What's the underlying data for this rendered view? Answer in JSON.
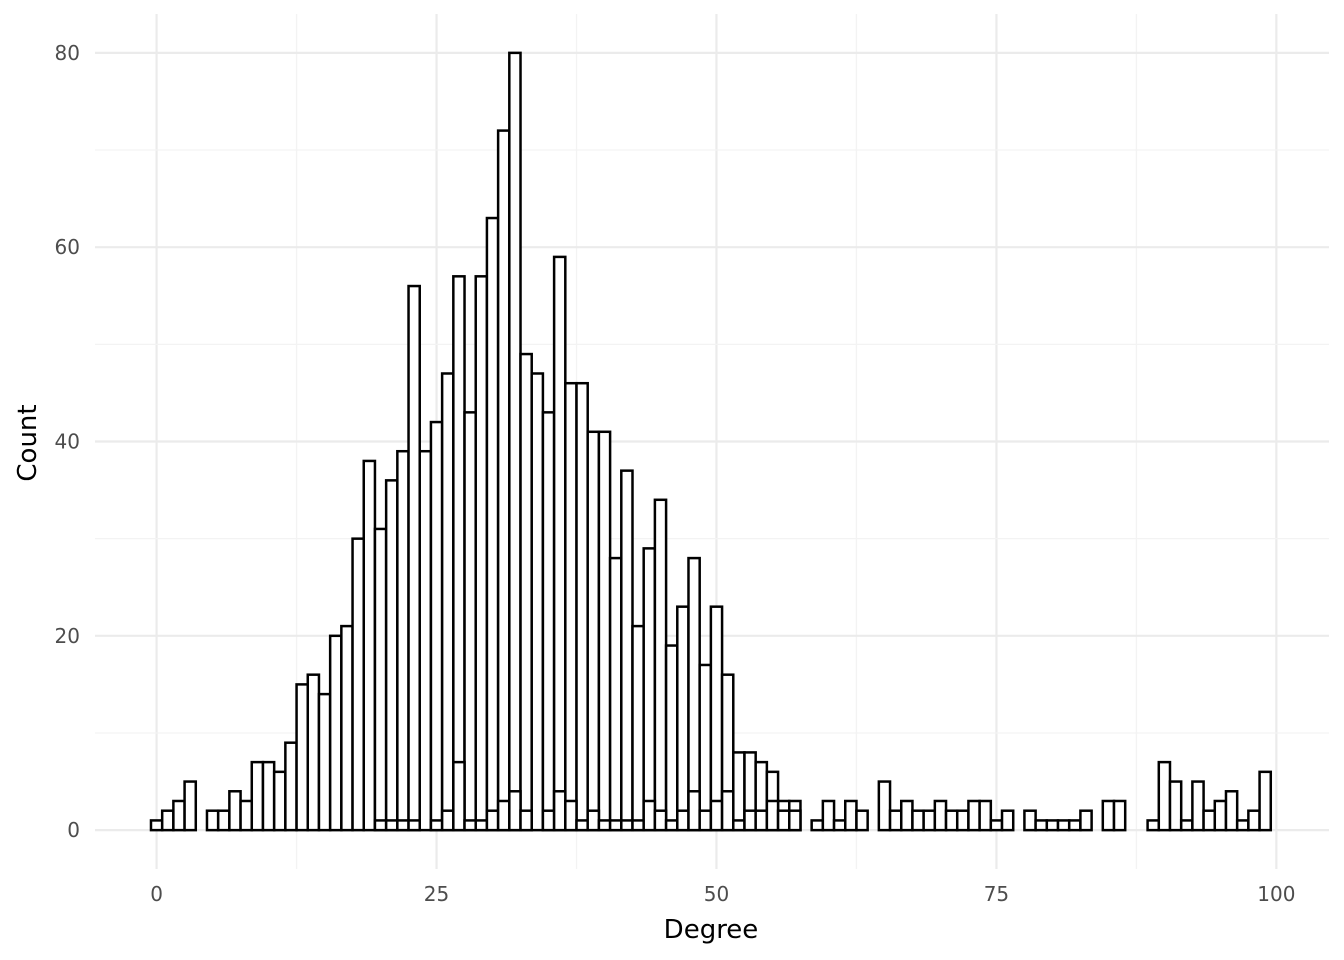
{
  "chart_data": {
    "type": "bar",
    "xlabel": "Degree",
    "ylabel": "Count",
    "xlim": [
      -5.5,
      104.7
    ],
    "ylim": [
      -4,
      84
    ],
    "x_ticks": [
      0,
      25,
      50,
      75,
      100
    ],
    "y_ticks": [
      0,
      20,
      40,
      60,
      80
    ],
    "grid": true,
    "series": [
      {
        "x": [
          0,
          1,
          2,
          3,
          5,
          6,
          7,
          8,
          9,
          10,
          11,
          12,
          13,
          14,
          15,
          16,
          17,
          18,
          19,
          20,
          21,
          22,
          23,
          24,
          25,
          26,
          27,
          28,
          29,
          30,
          31,
          32,
          33,
          34,
          35,
          36,
          37,
          38,
          39,
          40,
          41,
          42,
          43,
          44,
          45,
          46,
          47,
          48,
          49,
          50,
          51,
          52,
          53,
          54,
          55,
          56,
          57,
          59,
          60,
          61,
          62,
          63,
          65,
          66,
          67,
          68,
          69,
          70,
          71,
          72,
          73,
          74,
          75,
          76,
          78,
          79,
          80,
          81,
          82,
          83,
          85,
          86,
          89,
          90,
          91,
          92,
          93,
          94,
          95,
          96,
          97,
          98,
          99
        ],
        "values": [
          1,
          2,
          3,
          5,
          2,
          2,
          4,
          3,
          7,
          7,
          6,
          9,
          15,
          16,
          14,
          20,
          21,
          30,
          38,
          31,
          36,
          39,
          56,
          39,
          42,
          47,
          57,
          43,
          57,
          63,
          72,
          80,
          49,
          47,
          43,
          59,
          46,
          46,
          41,
          41,
          28,
          37,
          21,
          29,
          34,
          19,
          23,
          28,
          17,
          23,
          16,
          8,
          8,
          7,
          6,
          3,
          3,
          1,
          3,
          1,
          3,
          2,
          5,
          2,
          3,
          2,
          2,
          3,
          2,
          2,
          3,
          3,
          1,
          2,
          2,
          1,
          1,
          1,
          1,
          2,
          3,
          3,
          1,
          7,
          5,
          1,
          5,
          2,
          3,
          4,
          1,
          2,
          6
        ]
      },
      {
        "x": [
          20,
          21,
          22,
          23,
          25,
          26,
          27,
          28,
          29,
          30,
          31,
          32,
          33,
          35,
          36,
          37,
          38,
          39,
          40,
          41,
          42,
          43,
          44,
          45,
          46,
          47,
          48,
          49,
          50,
          51,
          52,
          53,
          54,
          55,
          56,
          57
        ],
        "values": [
          1,
          1,
          1,
          1,
          1,
          2,
          7,
          1,
          1,
          2,
          3,
          4,
          2,
          2,
          4,
          3,
          1,
          2,
          1,
          1,
          1,
          1,
          3,
          2,
          1,
          2,
          4,
          2,
          3,
          4,
          1,
          2,
          2,
          3,
          2,
          2
        ]
      }
    ]
  }
}
